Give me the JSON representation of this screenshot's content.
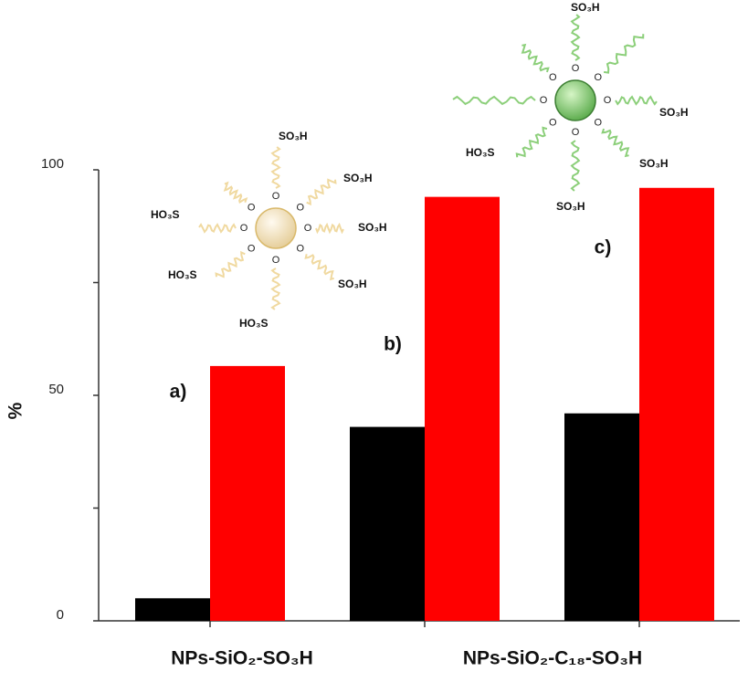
{
  "chart_data": {
    "type": "bar",
    "y_label": "%",
    "categories": [
      "a)",
      "b)",
      "c)"
    ],
    "x_labels": [
      "NPs-SiO₂-SO₃H",
      "NPs-SiO₂-C₁₈-SO₃H"
    ],
    "series": [
      {
        "color": "#000000",
        "values": [
          5,
          43,
          46
        ]
      },
      {
        "color": "#ff0000",
        "values": [
          56.5,
          94,
          96
        ]
      }
    ],
    "ylim": [
      0,
      100
    ],
    "yticks": [
      0,
      50,
      100
    ],
    "minor_yticks": [
      25,
      75
    ],
    "molecule": {
      "so3h": "SO₃H",
      "ho3s": "HO₃S",
      "o": "O"
    }
  }
}
